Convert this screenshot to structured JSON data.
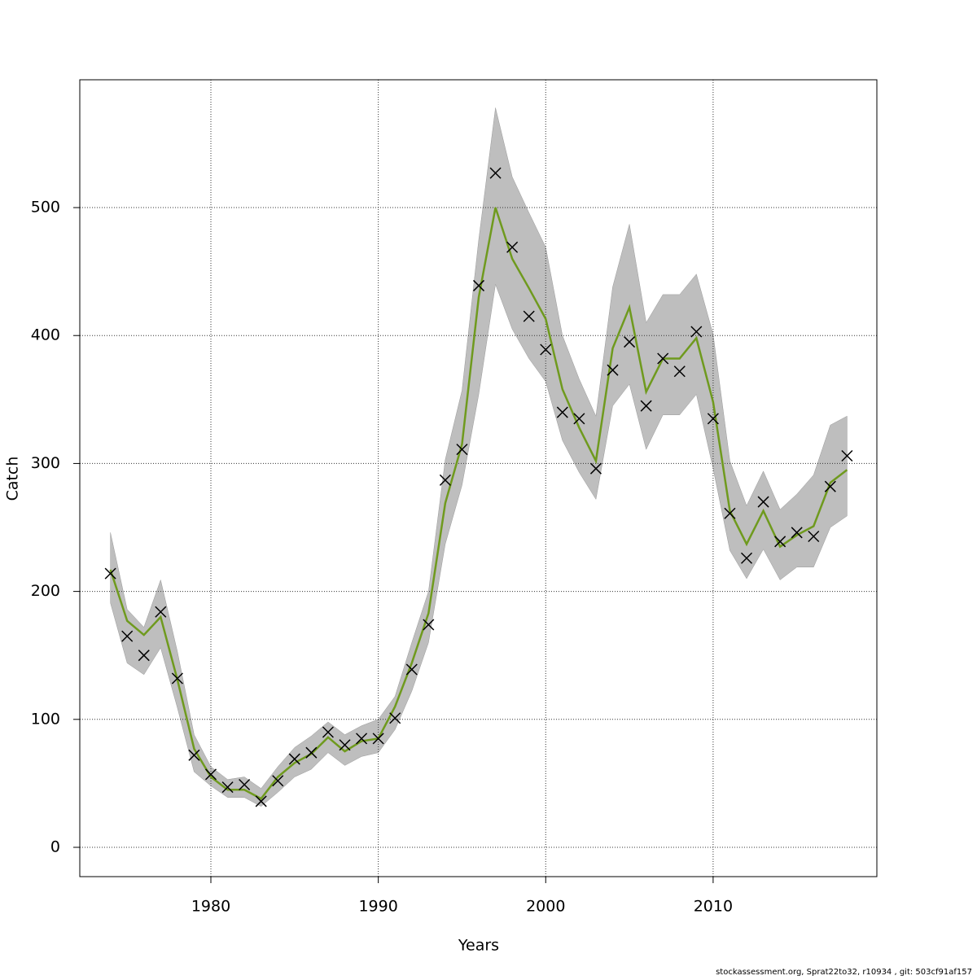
{
  "chart_data": {
    "type": "line",
    "xlabel": "Years",
    "ylabel": "Catch",
    "footnote": "stockassessment.org, Sprat22to32, r10934 , git: 503cf91af157",
    "x": [
      1974,
      1975,
      1976,
      1977,
      1978,
      1979,
      1980,
      1981,
      1982,
      1983,
      1984,
      1985,
      1986,
      1987,
      1988,
      1989,
      1990,
      1991,
      1992,
      1993,
      1994,
      1995,
      1996,
      1997,
      1998,
      1999,
      2000,
      2001,
      2002,
      2003,
      2004,
      2005,
      2006,
      2007,
      2008,
      2009,
      2010,
      2011,
      2012,
      2013,
      2014,
      2015,
      2016,
      2017,
      2018
    ],
    "band": {
      "color": "#bebebe",
      "upper": [
        246,
        186,
        172,
        209,
        153,
        88,
        63,
        53,
        55,
        46,
        63,
        78,
        87,
        98,
        88,
        95,
        100,
        118,
        160,
        200,
        303,
        357,
        475,
        578,
        524,
        496,
        469,
        400,
        366,
        337,
        438,
        487,
        410,
        432,
        432,
        448,
        401,
        302,
        267,
        294,
        264,
        276,
        291,
        330,
        337
      ],
      "lower": [
        191,
        144,
        135,
        156,
        109,
        59,
        48,
        39,
        39,
        32,
        43,
        55,
        61,
        74,
        64,
        71,
        74,
        92,
        122,
        160,
        237,
        283,
        354,
        440,
        405,
        382,
        364,
        318,
        293,
        272,
        345,
        362,
        311,
        338,
        338,
        354,
        296,
        232,
        210,
        233,
        209,
        219,
        219,
        250,
        259
      ]
    },
    "series": [
      {
        "color": "#6f9a1e",
        "style": "line",
        "values": [
          217,
          177,
          166,
          180,
          131,
          77,
          55,
          45,
          45,
          38,
          55,
          66,
          73,
          86,
          75,
          83,
          85,
          110,
          144,
          183,
          269,
          315,
          430,
          500,
          460,
          437,
          413,
          358,
          328,
          302,
          390,
          422,
          356,
          382,
          382,
          398,
          348,
          263,
          237,
          263,
          235,
          244,
          251,
          285,
          295
        ]
      },
      {
        "color": "#000000",
        "style": "x",
        "values": [
          214,
          165,
          150,
          184,
          132,
          72,
          57,
          47,
          49,
          36,
          52,
          69,
          74,
          90,
          80,
          85,
          85,
          101,
          139,
          174,
          287,
          311,
          439,
          527,
          469,
          415,
          389,
          340,
          335,
          296,
          373,
          395,
          345,
          382,
          372,
          403,
          335,
          261,
          226,
          270,
          239,
          246,
          243,
          282,
          306
        ]
      }
    ],
    "xlim": [
      1972.17,
      2019.78
    ],
    "ylim": [
      -22.9,
      599.9
    ],
    "xticks": [
      1980,
      1990,
      2000,
      2010
    ],
    "yticks": [
      0,
      100,
      200,
      300,
      400,
      500
    ],
    "grid": true
  }
}
